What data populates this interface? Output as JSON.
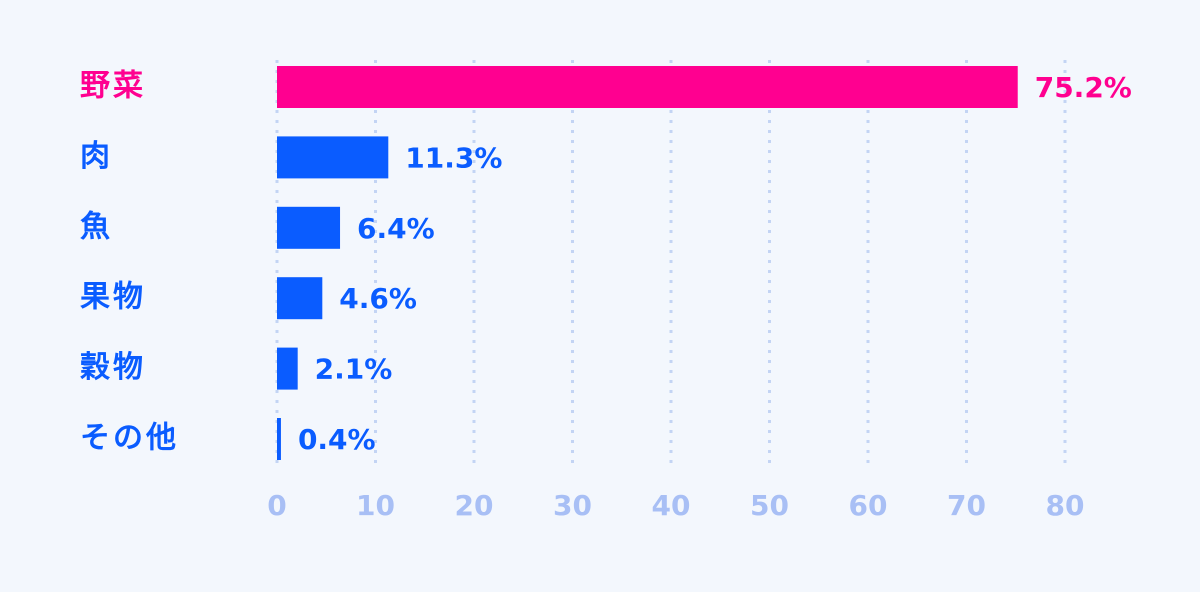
{
  "chart_data": {
    "type": "bar",
    "orientation": "horizontal",
    "categories": [
      "野菜",
      "肉",
      "魚",
      "果物",
      "穀物",
      "その他"
    ],
    "values": [
      75.2,
      11.3,
      6.4,
      4.6,
      2.1,
      0.4
    ],
    "value_labels": [
      "75.2%",
      "11.3%",
      "6.4%",
      "4.6%",
      "2.1%",
      "0.4%"
    ],
    "colors": [
      "#ff0090",
      "#0a5cff",
      "#0a5cff",
      "#0a5cff",
      "#0a5cff",
      "#0a5cff"
    ],
    "xlim": [
      0,
      80
    ],
    "xticks": [
      0,
      10,
      20,
      30,
      40,
      50,
      60,
      70,
      80
    ],
    "grid": true
  }
}
